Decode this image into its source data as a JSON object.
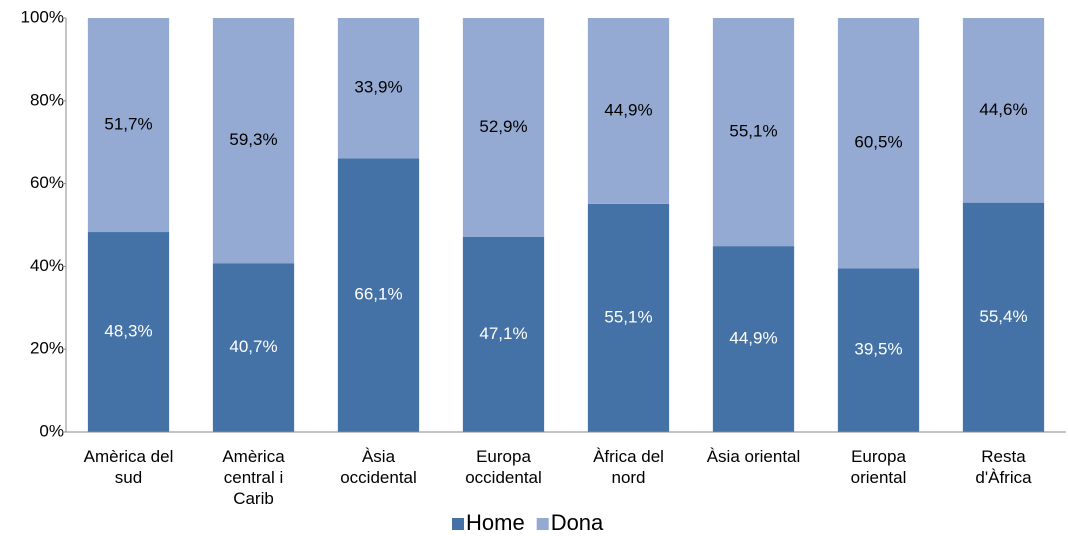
{
  "chart_data": {
    "type": "stacked_bar",
    "categories": [
      "Amèrica del\nsud",
      "Amèrica\ncentral i\nCarib",
      "Àsia\noccidental",
      "Europa\noccidental",
      "Àfrica del\nnord",
      "Àsia oriental",
      "Europa\noriental",
      "Resta\nd'Àfrica"
    ],
    "series": [
      {
        "name": "Home",
        "color": "#4472a6",
        "values": [
          48.3,
          40.7,
          66.1,
          47.1,
          55.1,
          44.9,
          39.5,
          55.4
        ],
        "value_labels": [
          "48,3%",
          "40,7%",
          "66,1%",
          "47,1%",
          "55,1%",
          "44,9%",
          "39,5%",
          "55,4%"
        ]
      },
      {
        "name": "Dona",
        "color": "#94aad2",
        "values": [
          51.7,
          59.3,
          33.9,
          52.9,
          44.9,
          55.1,
          60.5,
          44.6
        ],
        "value_labels": [
          "51,7%",
          "59,3%",
          "33,9%",
          "52,9%",
          "44,9%",
          "55,1%",
          "60,5%",
          "44,6%"
        ]
      }
    ],
    "ylim": [
      0,
      100
    ],
    "yticks": [
      {
        "value": 0,
        "label": "0%"
      },
      {
        "value": 20,
        "label": "20%"
      },
      {
        "value": 40,
        "label": "40%"
      },
      {
        "value": 60,
        "label": "60%"
      },
      {
        "value": 80,
        "label": "80%"
      },
      {
        "value": 100,
        "label": "100%"
      }
    ],
    "legend": "bottom"
  }
}
